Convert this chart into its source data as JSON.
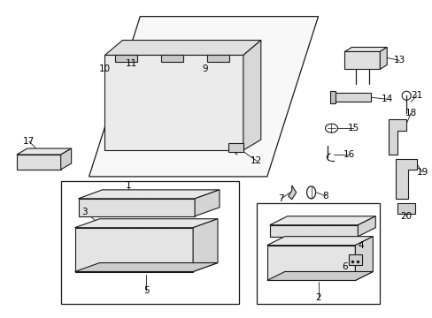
{
  "background_color": "#ffffff",
  "line_color": "#1a1a1a",
  "fig_width": 4.89,
  "fig_height": 3.6,
  "dpi": 100,
  "font_size": 7.5
}
